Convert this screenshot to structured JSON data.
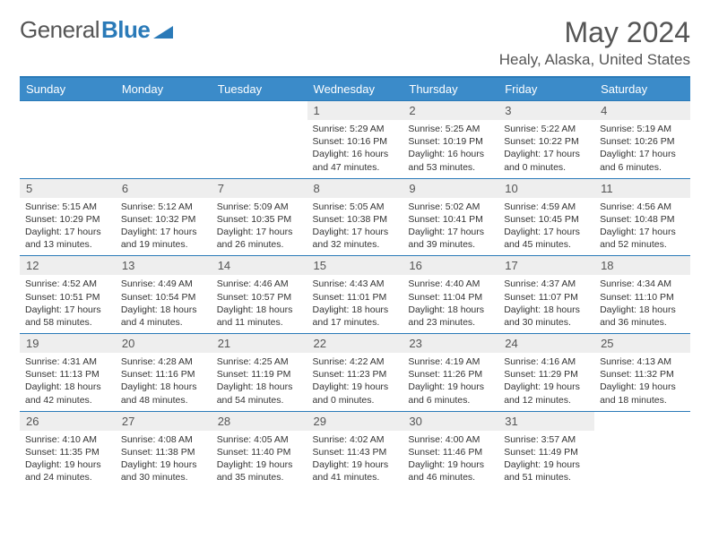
{
  "logo": {
    "text_left": "General",
    "text_right": "Blue"
  },
  "title": "May 2024",
  "location": "Healy, Alaska, United States",
  "colors": {
    "header_bg": "#3b8bc9",
    "header_border": "#2a7ab8",
    "daynum_bg": "#eeeeee",
    "text": "#333333",
    "muted": "#555555"
  },
  "days_of_week": [
    "Sunday",
    "Monday",
    "Tuesday",
    "Wednesday",
    "Thursday",
    "Friday",
    "Saturday"
  ],
  "weeks": [
    [
      {
        "n": "",
        "sr": "",
        "ss": "",
        "dl": ""
      },
      {
        "n": "",
        "sr": "",
        "ss": "",
        "dl": ""
      },
      {
        "n": "",
        "sr": "",
        "ss": "",
        "dl": ""
      },
      {
        "n": "1",
        "sr": "Sunrise: 5:29 AM",
        "ss": "Sunset: 10:16 PM",
        "dl": "Daylight: 16 hours and 47 minutes."
      },
      {
        "n": "2",
        "sr": "Sunrise: 5:25 AM",
        "ss": "Sunset: 10:19 PM",
        "dl": "Daylight: 16 hours and 53 minutes."
      },
      {
        "n": "3",
        "sr": "Sunrise: 5:22 AM",
        "ss": "Sunset: 10:22 PM",
        "dl": "Daylight: 17 hours and 0 minutes."
      },
      {
        "n": "4",
        "sr": "Sunrise: 5:19 AM",
        "ss": "Sunset: 10:26 PM",
        "dl": "Daylight: 17 hours and 6 minutes."
      }
    ],
    [
      {
        "n": "5",
        "sr": "Sunrise: 5:15 AM",
        "ss": "Sunset: 10:29 PM",
        "dl": "Daylight: 17 hours and 13 minutes."
      },
      {
        "n": "6",
        "sr": "Sunrise: 5:12 AM",
        "ss": "Sunset: 10:32 PM",
        "dl": "Daylight: 17 hours and 19 minutes."
      },
      {
        "n": "7",
        "sr": "Sunrise: 5:09 AM",
        "ss": "Sunset: 10:35 PM",
        "dl": "Daylight: 17 hours and 26 minutes."
      },
      {
        "n": "8",
        "sr": "Sunrise: 5:05 AM",
        "ss": "Sunset: 10:38 PM",
        "dl": "Daylight: 17 hours and 32 minutes."
      },
      {
        "n": "9",
        "sr": "Sunrise: 5:02 AM",
        "ss": "Sunset: 10:41 PM",
        "dl": "Daylight: 17 hours and 39 minutes."
      },
      {
        "n": "10",
        "sr": "Sunrise: 4:59 AM",
        "ss": "Sunset: 10:45 PM",
        "dl": "Daylight: 17 hours and 45 minutes."
      },
      {
        "n": "11",
        "sr": "Sunrise: 4:56 AM",
        "ss": "Sunset: 10:48 PM",
        "dl": "Daylight: 17 hours and 52 minutes."
      }
    ],
    [
      {
        "n": "12",
        "sr": "Sunrise: 4:52 AM",
        "ss": "Sunset: 10:51 PM",
        "dl": "Daylight: 17 hours and 58 minutes."
      },
      {
        "n": "13",
        "sr": "Sunrise: 4:49 AM",
        "ss": "Sunset: 10:54 PM",
        "dl": "Daylight: 18 hours and 4 minutes."
      },
      {
        "n": "14",
        "sr": "Sunrise: 4:46 AM",
        "ss": "Sunset: 10:57 PM",
        "dl": "Daylight: 18 hours and 11 minutes."
      },
      {
        "n": "15",
        "sr": "Sunrise: 4:43 AM",
        "ss": "Sunset: 11:01 PM",
        "dl": "Daylight: 18 hours and 17 minutes."
      },
      {
        "n": "16",
        "sr": "Sunrise: 4:40 AM",
        "ss": "Sunset: 11:04 PM",
        "dl": "Daylight: 18 hours and 23 minutes."
      },
      {
        "n": "17",
        "sr": "Sunrise: 4:37 AM",
        "ss": "Sunset: 11:07 PM",
        "dl": "Daylight: 18 hours and 30 minutes."
      },
      {
        "n": "18",
        "sr": "Sunrise: 4:34 AM",
        "ss": "Sunset: 11:10 PM",
        "dl": "Daylight: 18 hours and 36 minutes."
      }
    ],
    [
      {
        "n": "19",
        "sr": "Sunrise: 4:31 AM",
        "ss": "Sunset: 11:13 PM",
        "dl": "Daylight: 18 hours and 42 minutes."
      },
      {
        "n": "20",
        "sr": "Sunrise: 4:28 AM",
        "ss": "Sunset: 11:16 PM",
        "dl": "Daylight: 18 hours and 48 minutes."
      },
      {
        "n": "21",
        "sr": "Sunrise: 4:25 AM",
        "ss": "Sunset: 11:19 PM",
        "dl": "Daylight: 18 hours and 54 minutes."
      },
      {
        "n": "22",
        "sr": "Sunrise: 4:22 AM",
        "ss": "Sunset: 11:23 PM",
        "dl": "Daylight: 19 hours and 0 minutes."
      },
      {
        "n": "23",
        "sr": "Sunrise: 4:19 AM",
        "ss": "Sunset: 11:26 PM",
        "dl": "Daylight: 19 hours and 6 minutes."
      },
      {
        "n": "24",
        "sr": "Sunrise: 4:16 AM",
        "ss": "Sunset: 11:29 PM",
        "dl": "Daylight: 19 hours and 12 minutes."
      },
      {
        "n": "25",
        "sr": "Sunrise: 4:13 AM",
        "ss": "Sunset: 11:32 PM",
        "dl": "Daylight: 19 hours and 18 minutes."
      }
    ],
    [
      {
        "n": "26",
        "sr": "Sunrise: 4:10 AM",
        "ss": "Sunset: 11:35 PM",
        "dl": "Daylight: 19 hours and 24 minutes."
      },
      {
        "n": "27",
        "sr": "Sunrise: 4:08 AM",
        "ss": "Sunset: 11:38 PM",
        "dl": "Daylight: 19 hours and 30 minutes."
      },
      {
        "n": "28",
        "sr": "Sunrise: 4:05 AM",
        "ss": "Sunset: 11:40 PM",
        "dl": "Daylight: 19 hours and 35 minutes."
      },
      {
        "n": "29",
        "sr": "Sunrise: 4:02 AM",
        "ss": "Sunset: 11:43 PM",
        "dl": "Daylight: 19 hours and 41 minutes."
      },
      {
        "n": "30",
        "sr": "Sunrise: 4:00 AM",
        "ss": "Sunset: 11:46 PM",
        "dl": "Daylight: 19 hours and 46 minutes."
      },
      {
        "n": "31",
        "sr": "Sunrise: 3:57 AM",
        "ss": "Sunset: 11:49 PM",
        "dl": "Daylight: 19 hours and 51 minutes."
      },
      {
        "n": "",
        "sr": "",
        "ss": "",
        "dl": ""
      }
    ]
  ]
}
